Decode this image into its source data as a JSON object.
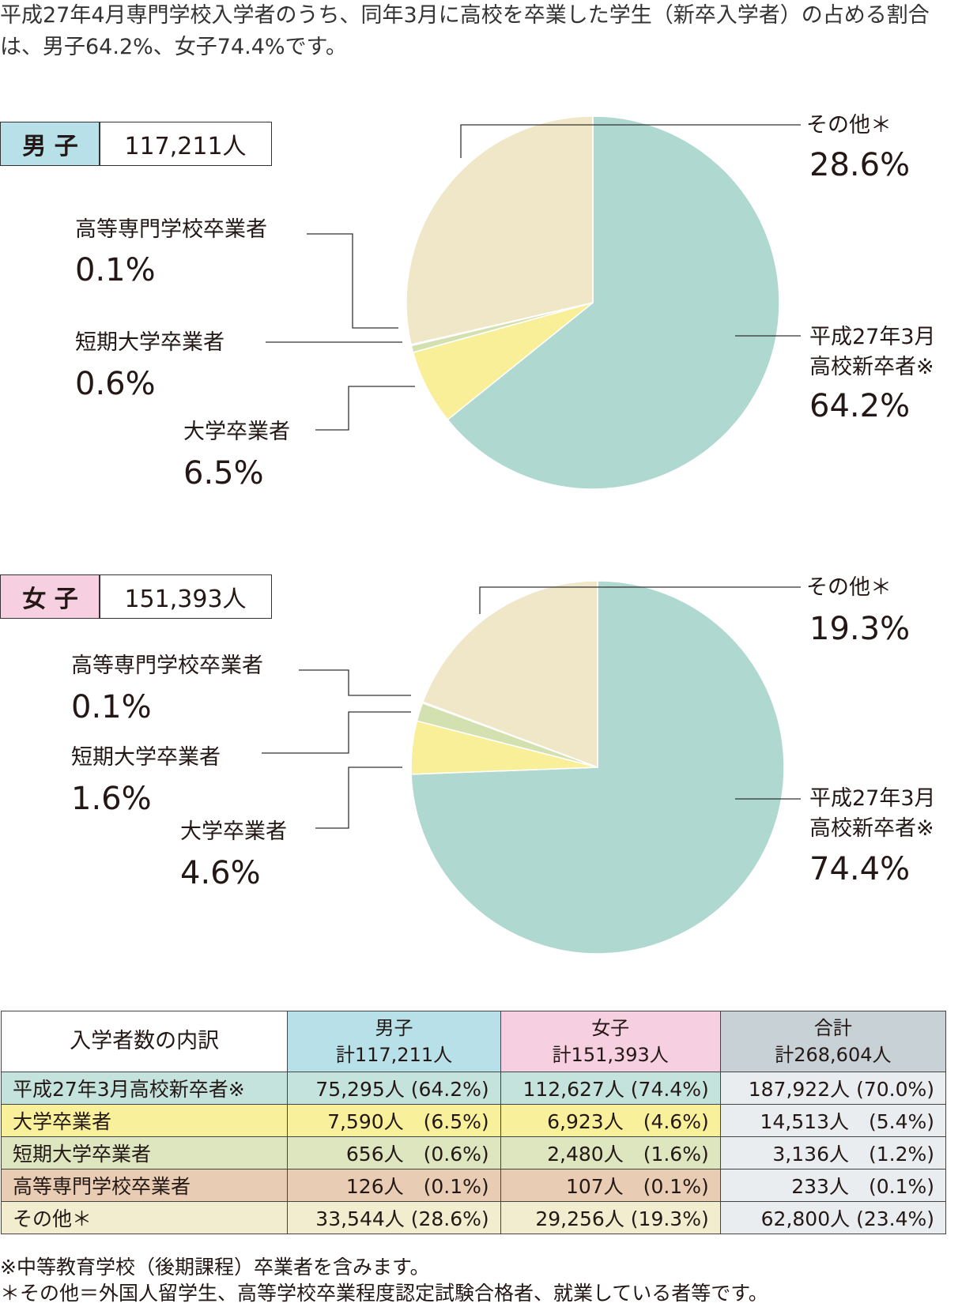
{
  "intro": "平成27年4月専門学校入学者のうち、同年3月に高校を卒業した学生（新卒入学者）の占める割合は、男子64.2%、女子74.4%です。",
  "chart_data": [
    {
      "type": "pie",
      "title": "男 子",
      "total": "117,211人",
      "categories": [
        "平成27年3月\n高校新卒者※",
        "大学卒業者",
        "短期大学卒業者",
        "高等専門学校卒業者",
        "その他＊"
      ],
      "values": [
        64.2,
        6.5,
        0.6,
        0.1,
        28.6
      ],
      "value_labels": [
        "64.2%",
        "6.5%",
        "0.6%",
        "0.1%",
        "28.6%"
      ],
      "colors": [
        "#afd8d0",
        "#f8ef98",
        "#d3e0b0",
        "#e3c3a6",
        "#efe7c8"
      ],
      "title_color": "#b8e0e8"
    },
    {
      "type": "pie",
      "title": "女 子",
      "total": "151,393人",
      "categories": [
        "平成27年3月\n高校新卒者※",
        "大学卒業者",
        "短期大学卒業者",
        "高等専門学校卒業者",
        "その他＊"
      ],
      "values": [
        74.4,
        4.6,
        1.6,
        0.1,
        19.3
      ],
      "value_labels": [
        "74.4%",
        "4.6%",
        "1.6%",
        "0.1%",
        "19.3%"
      ],
      "colors": [
        "#afd8d0",
        "#f8ef98",
        "#d3e0b0",
        "#e3c3a6",
        "#efe7c8"
      ],
      "title_color": "#f6d0e0"
    }
  ],
  "table": {
    "columns": [
      {
        "name": "入学者数の内訳",
        "color": "#ffffff"
      },
      {
        "name": "男子",
        "total": "計117,211人",
        "color": "#b8e0e8"
      },
      {
        "name": "女子",
        "total": "計151,393人",
        "color": "#f6d0e0"
      },
      {
        "name": "合計",
        "total": "計268,604人",
        "color": "#c8d1d5"
      }
    ],
    "rows": [
      {
        "color": "#c5e3dd",
        "cells": [
          "平成27年3月高校新卒者※",
          "75,295人 (64.2%)",
          "112,627人 (74.4%)",
          "187,922人 (70.0%)"
        ]
      },
      {
        "color": "#f9f09c",
        "cells": [
          "大学卒業者",
          "7,590人　(6.5%)",
          "6,923人　(4.6%)",
          "14,513人　(5.4%)"
        ]
      },
      {
        "color": "#dde6bf",
        "cells": [
          "短期大学卒業者",
          "656人　(0.6%)",
          "2,480人　(1.6%)",
          "3,136人　(1.2%)"
        ]
      },
      {
        "color": "#e8cdb4",
        "cells": [
          "高等専門学校卒業者",
          "126人　(0.1%)",
          "107人　(0.1%)",
          "233人　(0.1%)"
        ]
      },
      {
        "color": "#f3edcf",
        "cells": [
          "その他＊",
          "33,544人 (28.6%)",
          "29,256人 (19.3%)",
          "62,800人 (23.4%)"
        ]
      }
    ],
    "total_color": "#e9edef"
  },
  "footnotes": [
    "※中等教育学校（後期課程）卒業者を含みます。",
    "＊その他＝外国人留学生、高等学校卒業程度認定試験合格者、就業している者等です。"
  ]
}
